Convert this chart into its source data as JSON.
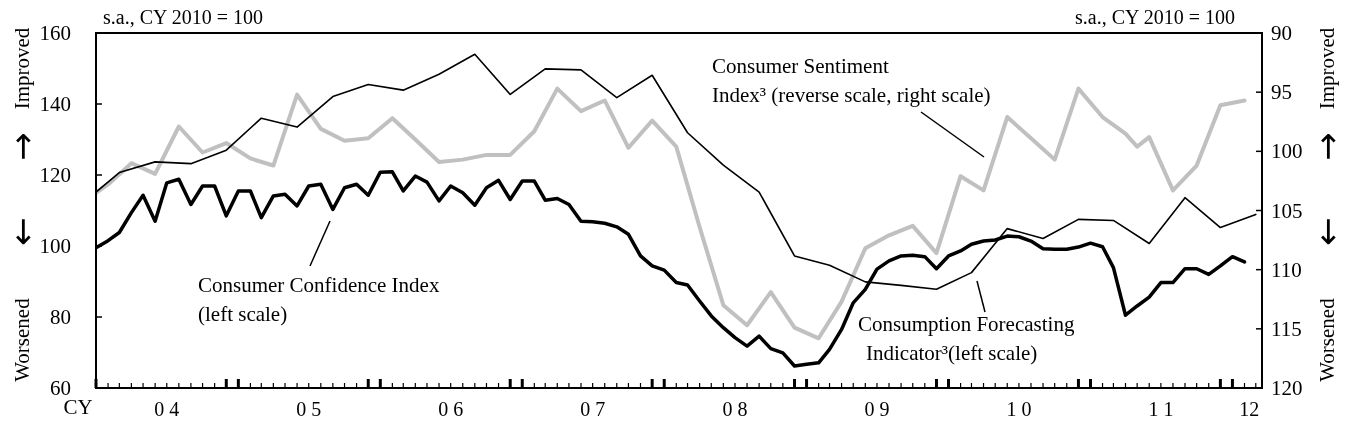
{
  "chart_data": {
    "type": "line",
    "xlabel": "CY",
    "ylabel": "Worsened ← → Improved",
    "y2label": "Worsened ← → Improved",
    "annotations": [
      "s.a., CY 2010 = 100",
      "s.a., CY 2010 = 100"
    ],
    "xlim": [
      "2004-01",
      "2012-03-17"
    ],
    "xticks": [
      {
        "value": "2004-07",
        "label": "0 4"
      },
      {
        "value": "2005-07",
        "label": "0 5"
      },
      {
        "value": "2006-07",
        "label": "0 6"
      },
      {
        "value": "2007-07",
        "label": "0 7"
      },
      {
        "value": "2008-07",
        "label": "0 8"
      },
      {
        "value": "2009-07",
        "label": "0 9"
      },
      {
        "value": "2010-07",
        "label": "1 0"
      },
      {
        "value": "2011-07",
        "label": "1 1"
      },
      {
        "value": "2012-02-13",
        "label": "12"
      }
    ],
    "ylim": [
      60,
      160
    ],
    "yticks": [
      60,
      80,
      100,
      120,
      140,
      160
    ],
    "y2lim": [
      120,
      90
    ],
    "y2ticks": [
      90,
      95,
      100,
      105,
      110,
      115,
      120
    ],
    "legend": "bottom",
    "series": [
      {
        "name": "Consumer Confidence Index\n(left scale)",
        "color": "#000000",
        "x": [
          "2004-01",
          "2004-02",
          "2004-03",
          "2004-04",
          "2004-05",
          "2004-06",
          "2004-07",
          "2004-08",
          "2004-09",
          "2004-10",
          "2004-11",
          "2004-12",
          "2005-01",
          "2005-02",
          "2005-03",
          "2005-04",
          "2005-05",
          "2005-06",
          "2005-07",
          "2005-08",
          "2005-09",
          "2005-10",
          "2005-11",
          "2005-12",
          "2006-01",
          "2006-02",
          "2006-03",
          "2006-04",
          "2006-05",
          "2006-06",
          "2006-07",
          "2006-08",
          "2006-09",
          "2006-10",
          "2006-11",
          "2006-12",
          "2007-01",
          "2007-02",
          "2007-03",
          "2007-04",
          "2007-05",
          "2007-06",
          "2007-07",
          "2007-08",
          "2007-09",
          "2007-10",
          "2007-11",
          "2007-12",
          "2008-01",
          "2008-02",
          "2008-03",
          "2008-04",
          "2008-05",
          "2008-06",
          "2008-07",
          "2008-08",
          "2008-09",
          "2008-10",
          "2008-11",
          "2008-12",
          "2009-01",
          "2009-02",
          "2009-03",
          "2009-04",
          "2009-05",
          "2009-06",
          "2009-07",
          "2009-08",
          "2009-09",
          "2009-10",
          "2009-11",
          "2009-12",
          "2010-01",
          "2010-02",
          "2010-03",
          "2010-04",
          "2010-05",
          "2010-06",
          "2010-07",
          "2010-08",
          "2010-09",
          "2010-10",
          "2010-11",
          "2010-12",
          "2011-01",
          "2011-02",
          "2011-03",
          "2011-04",
          "2011-05",
          "2011-06",
          "2011-07",
          "2011-08",
          "2011-09",
          "2011-10",
          "2011-11",
          "2011-12",
          "2012-01",
          "2012-02"
        ],
        "values": [
          99.5,
          101.5,
          103.8,
          109.4,
          114.3,
          107.0,
          117.8,
          118.8,
          111.7,
          116.9,
          116.9,
          108.5,
          115.5,
          115.5,
          108.0,
          114.1,
          114.6,
          111.3,
          116.9,
          117.4,
          110.3,
          116.4,
          117.4,
          114.3,
          120.8,
          120.9,
          115.5,
          119.7,
          118.0,
          112.7,
          116.9,
          115.0,
          111.5,
          116.4,
          118.5,
          113.1,
          118.3,
          118.3,
          112.9,
          113.4,
          111.7,
          107.0,
          106.8,
          106.4,
          105.4,
          103.3,
          97.2,
          94.4,
          93.2,
          89.7,
          89.0,
          84.5,
          80.3,
          77.0,
          74.2,
          71.8,
          74.6,
          71.1,
          69.9,
          66.2,
          66.7,
          67.1,
          70.9,
          76.5,
          84.0,
          87.8,
          93.5,
          95.8,
          97.2,
          97.4,
          97.0,
          93.6,
          97.2,
          98.6,
          100.5,
          101.4,
          101.7,
          102.8,
          102.6,
          101.4,
          99.2,
          99.1,
          99.1,
          99.7,
          100.8,
          99.8,
          93.9,
          80.5,
          83.1,
          85.6,
          89.7,
          89.7,
          93.6,
          93.6,
          92.0,
          94.4,
          97.0,
          95.5
        ]
      },
      {
        "name": "Consumption Forecasting\nIndicator³(left scale)",
        "color": "#000000",
        "x": [
          "2004-01",
          "2004-03",
          "2004-06",
          "2004-09",
          "2004-12",
          "2005-03",
          "2005-06",
          "2005-09",
          "2005-12",
          "2006-03",
          "2006-06",
          "2006-09",
          "2006-12",
          "2007-03",
          "2007-06",
          "2007-09",
          "2007-12",
          "2008-03",
          "2008-06",
          "2008-09",
          "2008-12",
          "2009-03",
          "2009-06",
          "2009-09",
          "2009-12",
          "2010-03",
          "2010-06",
          "2010-09",
          "2010-12",
          "2011-03",
          "2011-06",
          "2011-09",
          "2011-12",
          "2012-03"
        ],
        "values": [
          115.2,
          120.7,
          123.7,
          123.2,
          127.0,
          136.0,
          133.5,
          142.1,
          145.5,
          143.9,
          148.4,
          154.0,
          142.7,
          149.9,
          149.6,
          141.8,
          148.1,
          131.9,
          122.8,
          115.2,
          97.2,
          94.6,
          89.9,
          88.9,
          87.8,
          92.5,
          104.9,
          102.1,
          107.5,
          107.2,
          100.7,
          113.6,
          105.2,
          108.9
        ]
      },
      {
        "name": "Consumer Sentiment\nIndex³ (reverse scale, right scale)",
        "color": "#c0c0c0",
        "axis": "y2",
        "x": [
          "2004-01",
          "2004-02",
          "2004-04",
          "2004-06",
          "2004-08",
          "2004-10",
          "2004-12",
          "2005-02",
          "2005-04",
          "2005-06",
          "2005-08",
          "2005-10",
          "2005-12",
          "2006-02",
          "2006-04",
          "2006-06",
          "2006-08",
          "2006-10",
          "2006-12",
          "2007-02",
          "2007-04",
          "2007-06",
          "2007-08",
          "2007-10",
          "2007-12",
          "2008-02",
          "2008-04",
          "2008-06",
          "2008-08",
          "2008-10",
          "2008-12",
          "2009-02",
          "2009-04",
          "2009-06",
          "2009-08",
          "2009-10",
          "2009-12",
          "2010-02",
          "2010-04",
          "2010-06",
          "2010-08",
          "2010-10",
          "2010-12",
          "2011-02",
          "2011-04",
          "2011-05",
          "2011-06",
          "2011-08",
          "2011-10",
          "2011-12",
          "2012-02"
        ],
        "values": [
          103.5,
          102.8,
          101.0,
          101.9,
          97.9,
          100.1,
          99.3,
          100.6,
          101.2,
          95.2,
          98.1,
          99.1,
          98.9,
          97.2,
          99.0,
          100.9,
          100.7,
          100.3,
          100.3,
          98.3,
          94.7,
          96.6,
          95.7,
          99.7,
          97.4,
          99.6,
          106.4,
          113.0,
          114.7,
          111.9,
          114.9,
          115.8,
          112.7,
          108.2,
          107.1,
          106.3,
          108.6,
          102.1,
          103.3,
          97.1,
          98.9,
          100.7,
          94.7,
          97.1,
          98.5,
          99.6,
          98.8,
          103.3,
          101.2,
          96.1,
          95.7
        ]
      }
    ]
  }
}
